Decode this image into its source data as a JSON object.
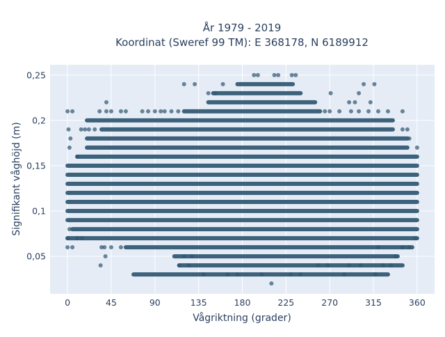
{
  "chart_data": {
    "type": "scatter",
    "title_lines": [
      "År 1979 - 2019",
      "Koordinat (Sweref 99 TM): E 368178, N 6189912"
    ],
    "xlabel": "Vågriktning (grader)",
    "ylabel": "Signifikant våghöjd (m)",
    "xlim": [
      -18,
      378
    ],
    "ylim": [
      0.0086,
      0.2614
    ],
    "xticks": [
      0,
      45,
      90,
      135,
      180,
      225,
      270,
      315,
      360
    ],
    "xtick_labels": [
      "0",
      "45",
      "90",
      "135",
      "180",
      "225",
      "270",
      "315",
      "360"
    ],
    "yticks": [
      0.05,
      0.1,
      0.15,
      0.2,
      0.25
    ],
    "ytick_labels": [
      "0,05",
      "0,1",
      "0,15",
      "0,2",
      "0,25"
    ],
    "grid": true,
    "legend": false,
    "background_color": "#e5ecf6",
    "marker_color": "#2f5670",
    "marker_opacity": 0.7,
    "density_note": "Near-continuous horizontal bands of points at every 0.01 m step; sparse points listed below",
    "bands": [
      {
        "y": 0.03,
        "x_min": 68,
        "x_max": 330
      },
      {
        "y": 0.04,
        "x_min": 115,
        "x_max": 345
      },
      {
        "y": 0.05,
        "x_min": 110,
        "x_max": 340
      },
      {
        "y": 0.06,
        "x_min": 60,
        "x_max": 355
      },
      {
        "y": 0.07,
        "x_min": 0,
        "x_max": 360
      },
      {
        "y": 0.08,
        "x_min": 5,
        "x_max": 360
      },
      {
        "y": 0.09,
        "x_min": 0,
        "x_max": 360
      },
      {
        "y": 0.1,
        "x_min": 0,
        "x_max": 360
      },
      {
        "y": 0.11,
        "x_min": 0,
        "x_max": 360
      },
      {
        "y": 0.12,
        "x_min": 0,
        "x_max": 360
      },
      {
        "y": 0.13,
        "x_min": 0,
        "x_max": 360
      },
      {
        "y": 0.14,
        "x_min": 0,
        "x_max": 360
      },
      {
        "y": 0.15,
        "x_min": 0,
        "x_max": 360
      },
      {
        "y": 0.16,
        "x_min": 10,
        "x_max": 360
      },
      {
        "y": 0.17,
        "x_min": 20,
        "x_max": 350
      },
      {
        "y": 0.18,
        "x_min": 20,
        "x_max": 350
      },
      {
        "y": 0.19,
        "x_min": 35,
        "x_max": 335
      },
      {
        "y": 0.2,
        "x_min": 20,
        "x_max": 335
      },
      {
        "y": 0.21,
        "x_min": 120,
        "x_max": 260
      },
      {
        "y": 0.22,
        "x_min": 145,
        "x_max": 255
      },
      {
        "y": 0.23,
        "x_min": 150,
        "x_max": 240
      },
      {
        "y": 0.24,
        "x_min": 175,
        "x_max": 232
      }
    ],
    "sparse_points": [
      {
        "x": 0,
        "y": 0.21
      },
      {
        "x": 5,
        "y": 0.21
      },
      {
        "x": 1,
        "y": 0.19
      },
      {
        "x": 3,
        "y": 0.18
      },
      {
        "x": 2,
        "y": 0.17
      },
      {
        "x": 14,
        "y": 0.19
      },
      {
        "x": 18,
        "y": 0.19
      },
      {
        "x": 22,
        "y": 0.19
      },
      {
        "x": 28,
        "y": 0.19
      },
      {
        "x": 10,
        "y": 0.16
      },
      {
        "x": 2,
        "y": 0.08
      },
      {
        "x": 0,
        "y": 0.07
      },
      {
        "x": 0,
        "y": 0.06
      },
      {
        "x": 5,
        "y": 0.06
      },
      {
        "x": 10,
        "y": 0.07
      },
      {
        "x": 15,
        "y": 0.07
      },
      {
        "x": 33,
        "y": 0.21
      },
      {
        "x": 40,
        "y": 0.21
      },
      {
        "x": 45,
        "y": 0.21
      },
      {
        "x": 55,
        "y": 0.21
      },
      {
        "x": 60,
        "y": 0.21
      },
      {
        "x": 40,
        "y": 0.22
      },
      {
        "x": 77,
        "y": 0.21
      },
      {
        "x": 83,
        "y": 0.21
      },
      {
        "x": 90,
        "y": 0.21
      },
      {
        "x": 96,
        "y": 0.21
      },
      {
        "x": 100,
        "y": 0.21
      },
      {
        "x": 107,
        "y": 0.21
      },
      {
        "x": 114,
        "y": 0.21
      },
      {
        "x": 35,
        "y": 0.06
      },
      {
        "x": 38,
        "y": 0.06
      },
      {
        "x": 45,
        "y": 0.06
      },
      {
        "x": 39,
        "y": 0.05
      },
      {
        "x": 34,
        "y": 0.04
      },
      {
        "x": 55,
        "y": 0.06
      },
      {
        "x": 120,
        "y": 0.24
      },
      {
        "x": 131,
        "y": 0.24
      },
      {
        "x": 145,
        "y": 0.23
      },
      {
        "x": 152,
        "y": 0.23
      },
      {
        "x": 160,
        "y": 0.24
      },
      {
        "x": 192,
        "y": 0.25
      },
      {
        "x": 196,
        "y": 0.25
      },
      {
        "x": 213,
        "y": 0.25
      },
      {
        "x": 217,
        "y": 0.25
      },
      {
        "x": 231,
        "y": 0.25
      },
      {
        "x": 235,
        "y": 0.25
      },
      {
        "x": 271,
        "y": 0.23
      },
      {
        "x": 305,
        "y": 0.24
      },
      {
        "x": 316,
        "y": 0.24
      },
      {
        "x": 300,
        "y": 0.23
      },
      {
        "x": 265,
        "y": 0.21
      },
      {
        "x": 270,
        "y": 0.21
      },
      {
        "x": 280,
        "y": 0.21
      },
      {
        "x": 292,
        "y": 0.21
      },
      {
        "x": 300,
        "y": 0.21
      },
      {
        "x": 310,
        "y": 0.21
      },
      {
        "x": 320,
        "y": 0.21
      },
      {
        "x": 330,
        "y": 0.21
      },
      {
        "x": 345,
        "y": 0.21
      },
      {
        "x": 290,
        "y": 0.22
      },
      {
        "x": 296,
        "y": 0.22
      },
      {
        "x": 312,
        "y": 0.22
      },
      {
        "x": 345,
        "y": 0.19
      },
      {
        "x": 350,
        "y": 0.19
      },
      {
        "x": 352,
        "y": 0.18
      },
      {
        "x": 360,
        "y": 0.17
      },
      {
        "x": 120,
        "y": 0.05
      },
      {
        "x": 128,
        "y": 0.05
      },
      {
        "x": 115,
        "y": 0.04
      },
      {
        "x": 125,
        "y": 0.04
      },
      {
        "x": 140,
        "y": 0.03
      },
      {
        "x": 165,
        "y": 0.03
      },
      {
        "x": 175,
        "y": 0.03
      },
      {
        "x": 200,
        "y": 0.03
      },
      {
        "x": 210,
        "y": 0.02
      },
      {
        "x": 230,
        "y": 0.03
      },
      {
        "x": 240,
        "y": 0.03
      },
      {
        "x": 258,
        "y": 0.04
      },
      {
        "x": 268,
        "y": 0.04
      },
      {
        "x": 285,
        "y": 0.03
      },
      {
        "x": 290,
        "y": 0.04
      },
      {
        "x": 302,
        "y": 0.04
      },
      {
        "x": 317,
        "y": 0.03
      },
      {
        "x": 325,
        "y": 0.04
      },
      {
        "x": 333,
        "y": 0.04
      },
      {
        "x": 338,
        "y": 0.05
      },
      {
        "x": 345,
        "y": 0.06
      },
      {
        "x": 352,
        "y": 0.06
      },
      {
        "x": 358,
        "y": 0.07
      },
      {
        "x": 320,
        "y": 0.06
      }
    ]
  }
}
